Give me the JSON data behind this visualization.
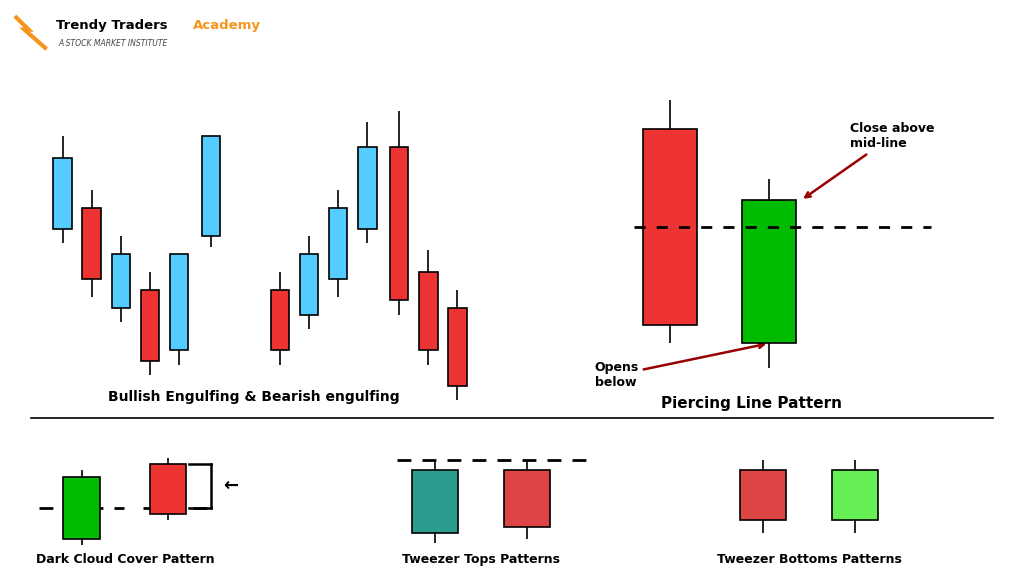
{
  "background_color": "#ffffff",
  "colors": {
    "red": "#ee3333",
    "green": "#00bb00",
    "blue": "#55ccff",
    "teal": "#2a9d8f",
    "pink_red": "#dd4444",
    "light_green": "#66ee55",
    "black": "#000000",
    "orange": "#f7941d",
    "darkred": "#990000"
  },
  "bullish_engulfing_label": "Bullish Engulfing & Bearish engulfing",
  "piercing_label": "Piercing Line Pattern",
  "dark_cloud_label": "Dark Cloud Cover Pattern",
  "tweezer_tops_label": "Tweezer Tops Patterns",
  "tweezer_bottoms_label": "Tweezer Bottoms Patterns",
  "annotation_close": "Close above\nmid-line",
  "annotation_open": "Opens\nbelow"
}
